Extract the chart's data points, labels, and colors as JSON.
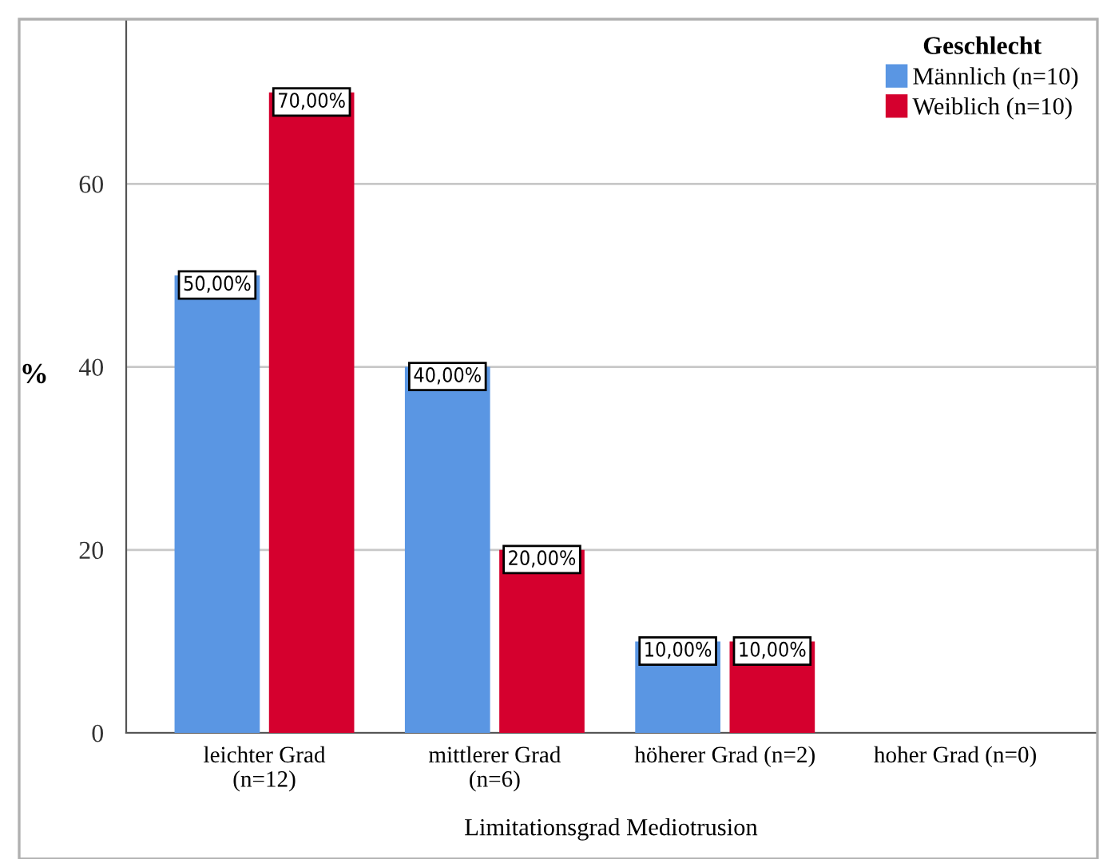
{
  "chart_data": {
    "type": "bar",
    "xlabel": "Limitationsgrad Mediotrusion",
    "ylabel": "%",
    "legend_title": "Geschlecht",
    "categories": [
      "leichter Grad\n(n=12)",
      "mittlerer Grad\n(n=6)",
      "höherer Grad (n=2)",
      "hoher Grad (n=0)"
    ],
    "series": [
      {
        "name": "Männlich (n=10)",
        "color": "#5a96e3",
        "values": [
          50,
          40,
          10,
          null
        ],
        "value_labels": [
          "50,00%",
          "40,00%",
          "10,00%",
          null
        ]
      },
      {
        "name": "Weiblich (n=10)",
        "color": "#d5002e",
        "values": [
          70,
          20,
          10,
          null
        ],
        "value_labels": [
          "70,00%",
          "20,00%",
          "10,00%",
          null
        ]
      }
    ],
    "ylim": [
      0,
      78
    ],
    "yticks": [
      0,
      20,
      40,
      60
    ],
    "grid": "y",
    "legend": "top right"
  }
}
